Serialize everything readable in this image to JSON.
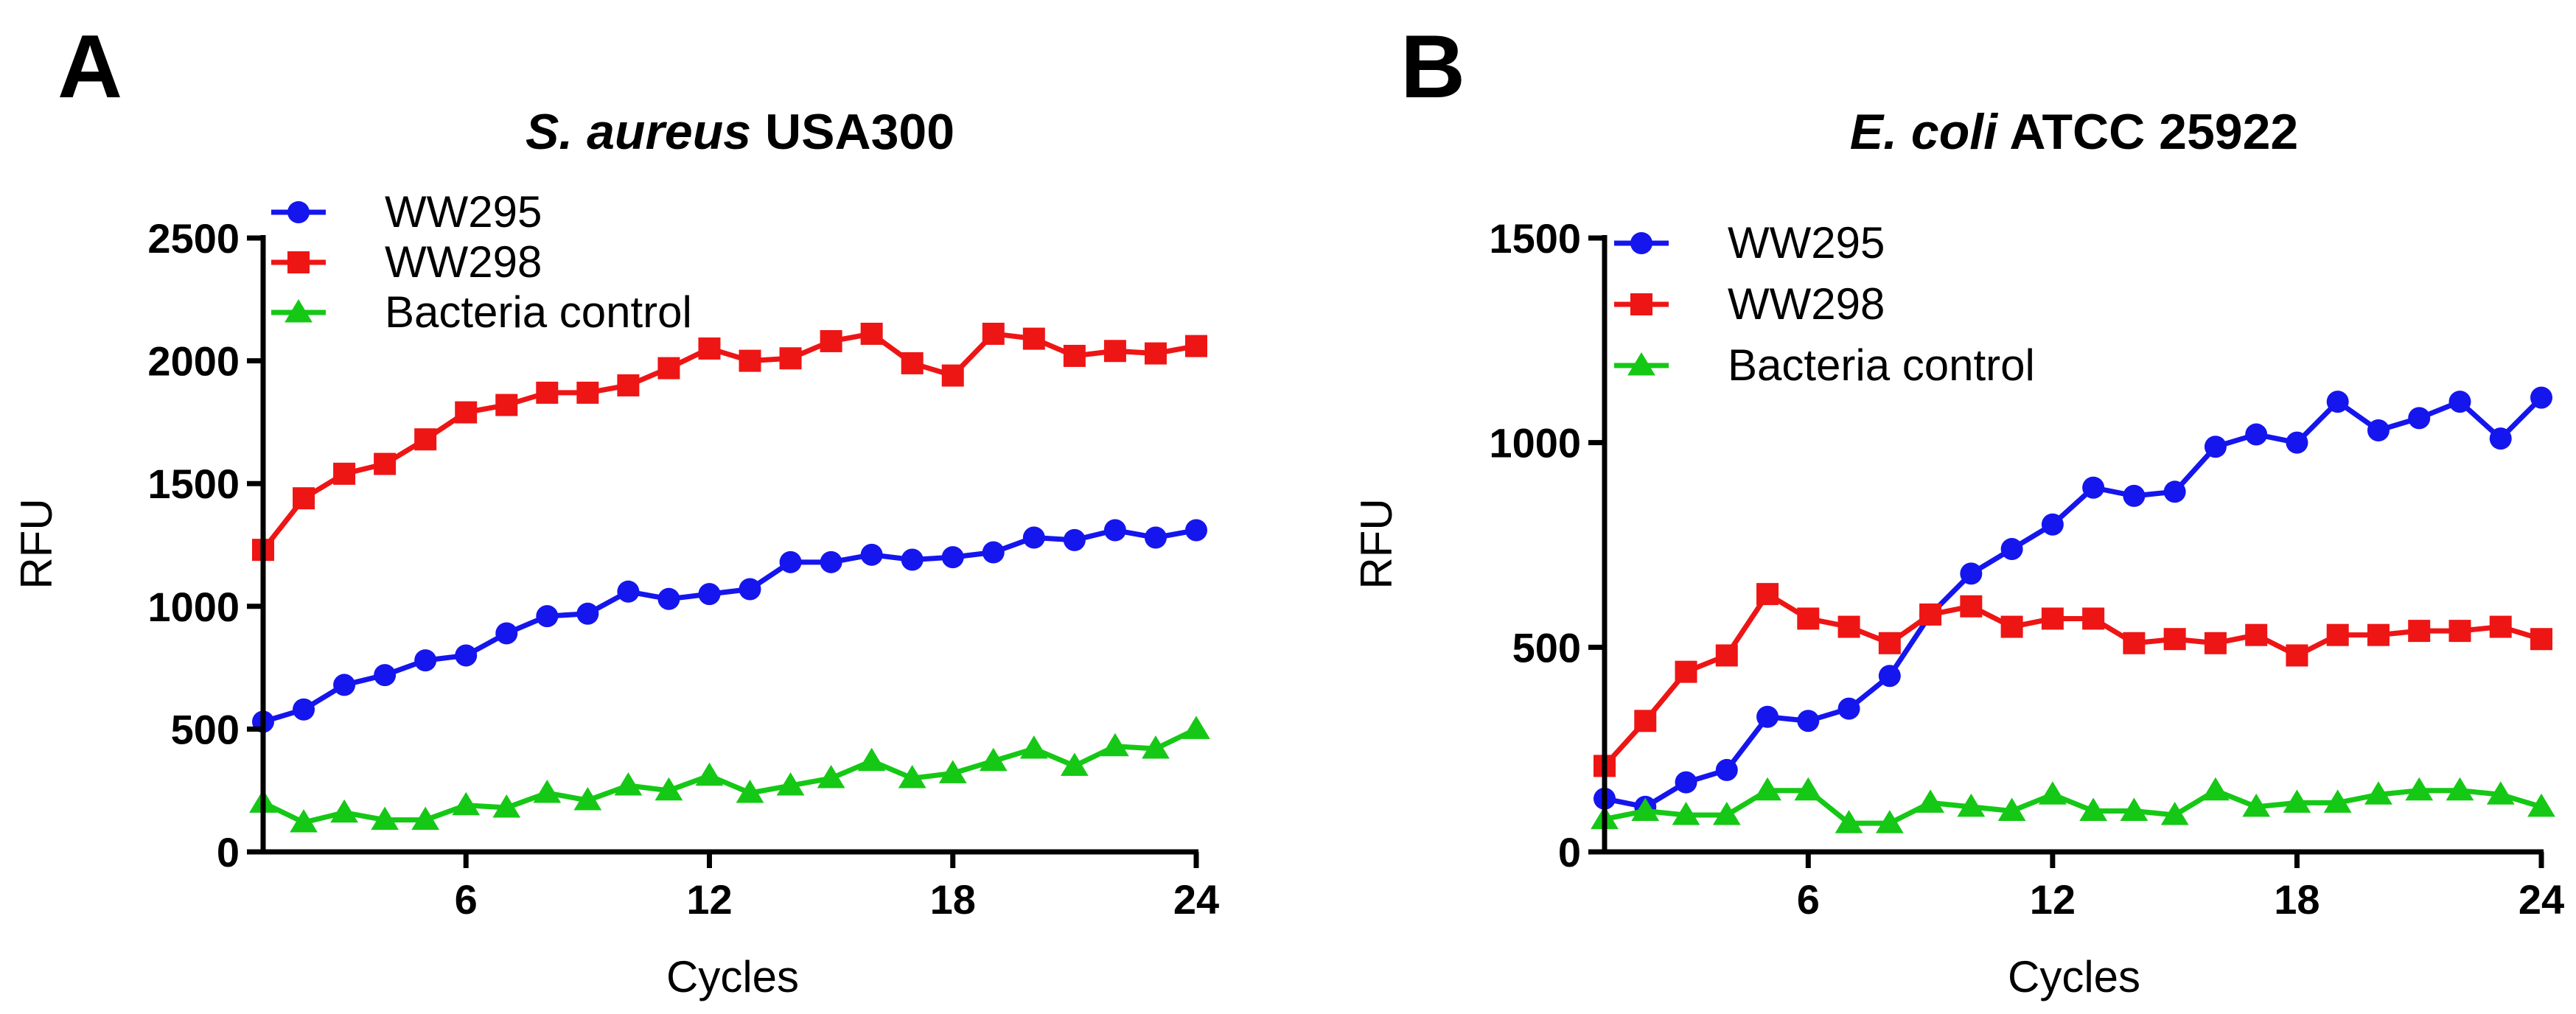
{
  "chart_data": [
    {
      "panel": "A",
      "type": "line",
      "title_italic": "S. aureus",
      "title_rest": "USA300",
      "xlabel": "Cycles",
      "ylabel": "RFU",
      "xlim": [
        1,
        24
      ],
      "ylim": [
        0,
        2500
      ],
      "xticks": [
        6,
        12,
        18,
        24
      ],
      "yticks": [
        0,
        500,
        1000,
        1500,
        2000,
        2500
      ],
      "legend_position": "top-left",
      "x": [
        1,
        2,
        3,
        4,
        5,
        6,
        7,
        8,
        9,
        10,
        11,
        12,
        13,
        14,
        15,
        16,
        17,
        18,
        19,
        20,
        21,
        22,
        23,
        24
      ],
      "series": [
        {
          "name": "WW295",
          "color": "#1515ee",
          "marker": "circle",
          "values": [
            530,
            580,
            680,
            720,
            780,
            800,
            890,
            960,
            970,
            1060,
            1030,
            1050,
            1070,
            1180,
            1180,
            1210,
            1190,
            1200,
            1220,
            1280,
            1270,
            1310,
            1280,
            1310
          ]
        },
        {
          "name": "WW298",
          "color": "#ee1515",
          "marker": "square",
          "values": [
            1230,
            1440,
            1540,
            1580,
            1680,
            1790,
            1820,
            1870,
            1870,
            1900,
            1970,
            2050,
            2000,
            2010,
            2080,
            2110,
            1990,
            1940,
            2110,
            2090,
            2020,
            2040,
            2030,
            2060
          ]
        },
        {
          "name": "Bacteria control",
          "color": "#15c815",
          "marker": "triangle",
          "values": [
            200,
            120,
            160,
            130,
            130,
            190,
            180,
            240,
            210,
            270,
            250,
            310,
            240,
            270,
            300,
            370,
            300,
            320,
            370,
            420,
            350,
            430,
            420,
            500
          ]
        }
      ]
    },
    {
      "panel": "B",
      "type": "line",
      "title_italic": "E. coli",
      "title_rest": "ATCC 25922",
      "xlabel": "Cycles",
      "ylabel": "RFU",
      "xlim": [
        1,
        24
      ],
      "ylim": [
        0,
        1500
      ],
      "xticks": [
        6,
        12,
        18,
        24
      ],
      "yticks": [
        0,
        500,
        1000,
        1500
      ],
      "legend_position": "top-left",
      "x": [
        1,
        2,
        3,
        4,
        5,
        6,
        7,
        8,
        9,
        10,
        11,
        12,
        13,
        14,
        15,
        16,
        17,
        18,
        19,
        20,
        21,
        22,
        23,
        24
      ],
      "series": [
        {
          "name": "WW295",
          "color": "#1515ee",
          "marker": "circle",
          "values": [
            130,
            110,
            170,
            200,
            330,
            320,
            350,
            430,
            580,
            680,
            740,
            800,
            890,
            870,
            880,
            990,
            1020,
            1000,
            1100,
            1030,
            1060,
            1100,
            1010,
            1110
          ]
        },
        {
          "name": "WW298",
          "color": "#ee1515",
          "marker": "square",
          "values": [
            210,
            320,
            440,
            480,
            630,
            570,
            550,
            510,
            580,
            600,
            550,
            570,
            570,
            510,
            520,
            510,
            530,
            480,
            530,
            530,
            540,
            540,
            550,
            520
          ]
        },
        {
          "name": "Bacteria control",
          "color": "#15c815",
          "marker": "triangle",
          "values": [
            80,
            100,
            90,
            90,
            150,
            150,
            70,
            70,
            120,
            110,
            100,
            140,
            100,
            100,
            90,
            150,
            110,
            120,
            120,
            140,
            150,
            150,
            140,
            110
          ]
        }
      ]
    }
  ]
}
